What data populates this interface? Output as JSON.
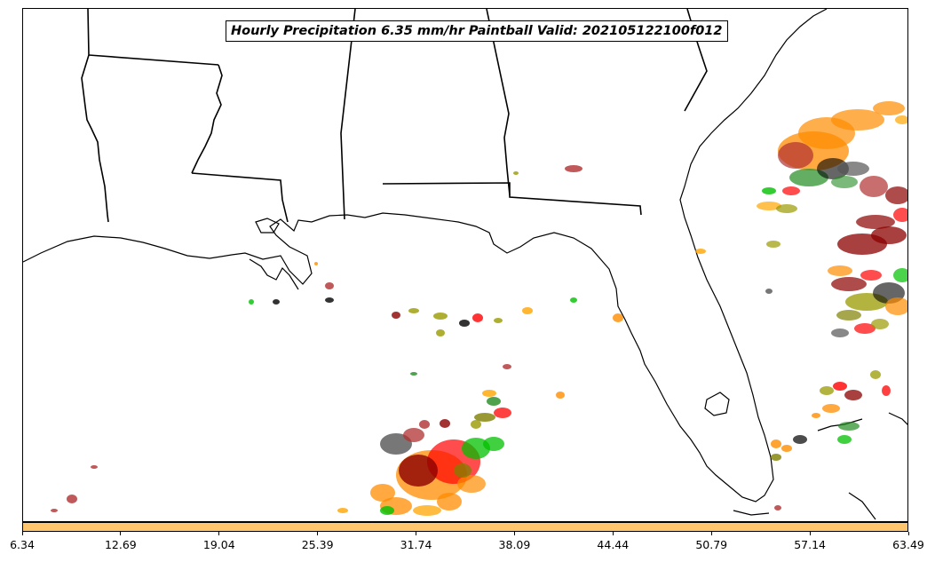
{
  "title": "Hourly Precipitation 6.35 mm/hr Paintball Valid: 202105122100f012",
  "map": {
    "region": "Southeastern United States and Gulf of Mexico",
    "coastline_color": "#000000",
    "paintball_colors": [
      "#8b0000",
      "#ff0000",
      "#ff8c00",
      "#ffa500",
      "#00c000",
      "#228b22",
      "#9a9a00",
      "#808000",
      "#a0522d",
      "#000000",
      "#555555",
      "#b03030"
    ]
  },
  "colorbar": {
    "color": "#ffc66d",
    "ticks": [
      "6.34",
      "12.69",
      "19.04",
      "25.39",
      "31.74",
      "38.09",
      "44.44",
      "50.79",
      "57.14",
      "63.49"
    ]
  }
}
